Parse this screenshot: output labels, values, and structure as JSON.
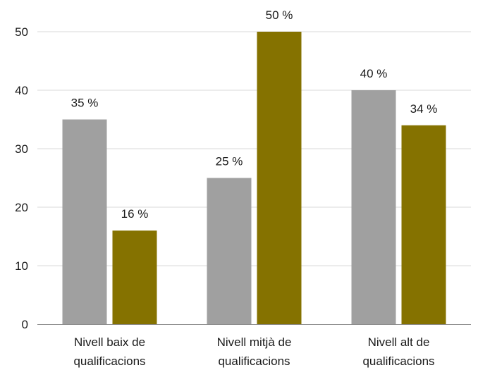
{
  "chart_data": {
    "type": "bar",
    "categories": [
      [
        "Nivell baix de",
        "qualificacions"
      ],
      [
        "Nivell mitjà de",
        "qualificacions"
      ],
      [
        "Nivell alt de",
        "qualificacions"
      ]
    ],
    "series": [
      {
        "values": [
          35,
          25,
          40
        ],
        "labels": [
          "35 %",
          "25 %",
          "40 %"
        ],
        "color": "#a0a0a0"
      },
      {
        "values": [
          16,
          50,
          34
        ],
        "labels": [
          "16 %",
          "50 %",
          "34 %"
        ],
        "color": "#857200"
      }
    ],
    "ylim": [
      0,
      50
    ],
    "yticks": [
      0,
      10,
      20,
      30,
      40,
      50
    ],
    "title": "",
    "xlabel": "",
    "ylabel": "",
    "grid": true,
    "legend": "none"
  }
}
